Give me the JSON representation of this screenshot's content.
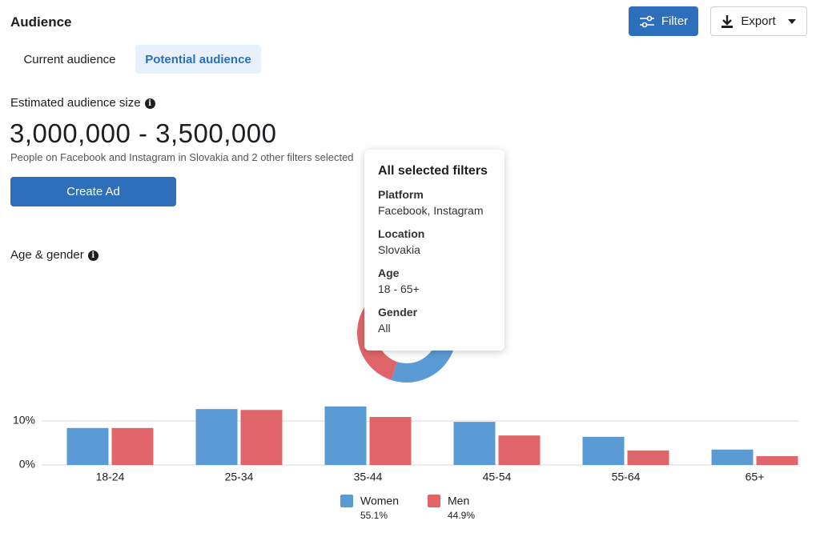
{
  "header": {
    "title": "Audience",
    "filter_button": "Filter",
    "export_button": "Export"
  },
  "tabs": [
    "Current audience",
    "Potential audience"
  ],
  "estimate": {
    "label": "Estimated audience size",
    "range": "3,000,000 - 3,500,000",
    "description": "People on Facebook and Instagram in Slovakia and 2 other filters selected",
    "button": "Create Ad"
  },
  "tooltip": {
    "title": "All selected filters",
    "items": [
      {
        "label": "Platform",
        "value": "Facebook, Instagram"
      },
      {
        "label": "Location",
        "value": "Slovakia"
      },
      {
        "label": "Age",
        "value": "18 - 65+"
      },
      {
        "label": "Gender",
        "value": "All"
      }
    ]
  },
  "chart_data": [
    {
      "type": "bar",
      "title": "Age & gender",
      "categories": [
        "18-24",
        "25-34",
        "35-44",
        "45-54",
        "55-64",
        "65+"
      ],
      "series": [
        {
          "name": "Women",
          "color": "#5b9bd5",
          "values": [
            8.4,
            12.7,
            13.3,
            9.8,
            6.4,
            3.5
          ]
        },
        {
          "name": "Men",
          "color": "#e0656b",
          "values": [
            8.4,
            12.5,
            10.9,
            6.7,
            3.3,
            2.0
          ]
        }
      ],
      "ylim": [
        0,
        15
      ],
      "yticks": [
        {
          "value": 0,
          "label": "0%"
        },
        {
          "value": 10,
          "label": "10%"
        }
      ],
      "grid": true
    },
    {
      "type": "pie",
      "values": [
        55.1,
        44.9
      ],
      "value_labels": [
        "55.1%",
        "44.9%"
      ],
      "colors": [
        "#5b9bd5",
        "#e0656b"
      ]
    }
  ]
}
